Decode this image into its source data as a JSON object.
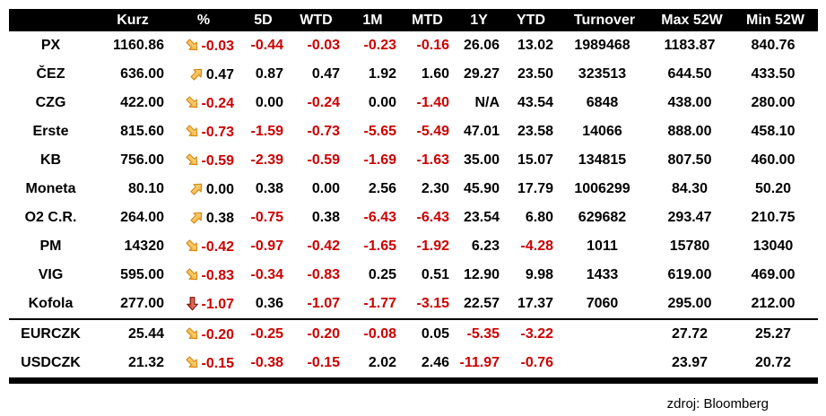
{
  "table": {
    "columns": [
      {
        "key": "label",
        "label": "",
        "align": "label"
      },
      {
        "key": "kurz",
        "label": "Kurz",
        "align": "num"
      },
      {
        "key": "pct",
        "label": "%",
        "align": "num"
      },
      {
        "key": "d5",
        "label": "5D",
        "align": "num"
      },
      {
        "key": "wtd",
        "label": "WTD",
        "align": "num"
      },
      {
        "key": "m1",
        "label": "1M",
        "align": "num"
      },
      {
        "key": "mtd",
        "label": "MTD",
        "align": "num"
      },
      {
        "key": "y1",
        "label": "1Y",
        "align": "num"
      },
      {
        "key": "ytd",
        "label": "YTD",
        "align": "num"
      },
      {
        "key": "turnover",
        "label": "Turnover",
        "align": "center"
      },
      {
        "key": "max52",
        "label": "Max 52W",
        "align": "center"
      },
      {
        "key": "min52",
        "label": "Min 52W",
        "align": "center"
      }
    ],
    "rows": [
      {
        "label": "PX",
        "kurz": "1160.86",
        "arrow": "down-diag",
        "pct": "-0.03",
        "d5": "-0.44",
        "wtd": "-0.03",
        "m1": "-0.23",
        "mtd": "-0.16",
        "y1": "26.06",
        "ytd": "13.02",
        "turnover": "1989468",
        "max52": "1183.87",
        "min52": "840.76",
        "separator_after": ""
      },
      {
        "label": "ČEZ",
        "kurz": "636.00",
        "arrow": "up-diag",
        "pct": "0.47",
        "d5": "0.87",
        "wtd": "0.47",
        "m1": "1.92",
        "mtd": "1.60",
        "y1": "29.27",
        "ytd": "23.50",
        "turnover": "323513",
        "max52": "644.50",
        "min52": "433.50",
        "separator_after": ""
      },
      {
        "label": "CZG",
        "kurz": "422.00",
        "arrow": "down-diag",
        "pct": "-0.24",
        "d5": "0.00",
        "wtd": "-0.24",
        "m1": "0.00",
        "mtd": "-1.40",
        "y1": "N/A",
        "ytd": "43.54",
        "turnover": "6848",
        "max52": "438.00",
        "min52": "280.00",
        "separator_after": ""
      },
      {
        "label": "Erste",
        "kurz": "815.60",
        "arrow": "down-diag",
        "pct": "-0.73",
        "d5": "-1.59",
        "wtd": "-0.73",
        "m1": "-5.65",
        "mtd": "-5.49",
        "y1": "47.01",
        "ytd": "23.58",
        "turnover": "14066",
        "max52": "888.00",
        "min52": "458.10",
        "separator_after": ""
      },
      {
        "label": "KB",
        "kurz": "756.00",
        "arrow": "down-diag",
        "pct": "-0.59",
        "d5": "-2.39",
        "wtd": "-0.59",
        "m1": "-1.69",
        "mtd": "-1.63",
        "y1": "35.00",
        "ytd": "15.07",
        "turnover": "134815",
        "max52": "807.50",
        "min52": "460.00",
        "separator_after": ""
      },
      {
        "label": "Moneta",
        "kurz": "80.10",
        "arrow": "up-diag",
        "pct": "0.00",
        "d5": "0.38",
        "wtd": "0.00",
        "m1": "2.56",
        "mtd": "2.30",
        "y1": "45.90",
        "ytd": "17.79",
        "turnover": "1006299",
        "max52": "84.30",
        "min52": "50.20",
        "separator_after": ""
      },
      {
        "label": "O2 C.R.",
        "kurz": "264.00",
        "arrow": "up-diag",
        "pct": "0.38",
        "d5": "-0.75",
        "wtd": "0.38",
        "m1": "-6.43",
        "mtd": "-6.43",
        "y1": "23.54",
        "ytd": "6.80",
        "turnover": "629682",
        "max52": "293.47",
        "min52": "210.75",
        "separator_after": ""
      },
      {
        "label": "PM",
        "kurz": "14320",
        "arrow": "down-diag",
        "pct": "-0.42",
        "d5": "-0.97",
        "wtd": "-0.42",
        "m1": "-1.65",
        "mtd": "-1.92",
        "y1": "6.23",
        "ytd": "-4.28",
        "turnover": "1011",
        "max52": "15780",
        "min52": "13040",
        "separator_after": ""
      },
      {
        "label": "VIG",
        "kurz": "595.00",
        "arrow": "down-diag",
        "pct": "-0.83",
        "d5": "-0.34",
        "wtd": "-0.83",
        "m1": "0.25",
        "mtd": "0.51",
        "y1": "12.90",
        "ytd": "9.98",
        "turnover": "1433",
        "max52": "619.00",
        "min52": "469.00",
        "separator_after": ""
      },
      {
        "label": "Kofola",
        "kurz": "277.00",
        "arrow": "down",
        "pct": "-1.07",
        "d5": "0.36",
        "wtd": "-1.07",
        "m1": "-1.77",
        "mtd": "-3.15",
        "y1": "22.57",
        "ytd": "17.37",
        "turnover": "7060",
        "max52": "295.00",
        "min52": "212.00",
        "separator_after": "thin"
      },
      {
        "label": "EURCZK",
        "kurz": "25.44",
        "arrow": "down-diag",
        "pct": "-0.20",
        "d5": "-0.25",
        "wtd": "-0.20",
        "m1": "-0.08",
        "mtd": "0.05",
        "y1": "-5.35",
        "ytd": "-3.22",
        "turnover": "",
        "max52": "27.72",
        "min52": "25.27",
        "separator_after": ""
      },
      {
        "label": "USDCZK",
        "kurz": "21.32",
        "arrow": "down-diag",
        "pct": "-0.15",
        "d5": "-0.38",
        "wtd": "-0.15",
        "m1": "2.02",
        "mtd": "2.46",
        "y1": "-11.97",
        "ytd": "-0.76",
        "turnover": "",
        "max52": "23.97",
        "min52": "20.72",
        "separator_after": "thick"
      }
    ]
  },
  "icons": {
    "down-diag": "arrow-down-right-icon",
    "up-diag": "arrow-up-right-icon",
    "down": "arrow-down-icon"
  },
  "colors": {
    "negative_text": "#CC0000",
    "positive_text": "#000000",
    "header_bg": "#000000",
    "header_text": "#FFFFFF",
    "arrow_yellow_light": "#FFE28A",
    "arrow_yellow_dark": "#F2A83C",
    "arrow_yellow_stroke": "#D4860F",
    "arrow_red_light": "#F0978B",
    "arrow_red_dark": "#C62F20",
    "arrow_red_stroke": "#7A150D"
  },
  "footer": {
    "source_label": "zdroj: Bloomberg"
  }
}
